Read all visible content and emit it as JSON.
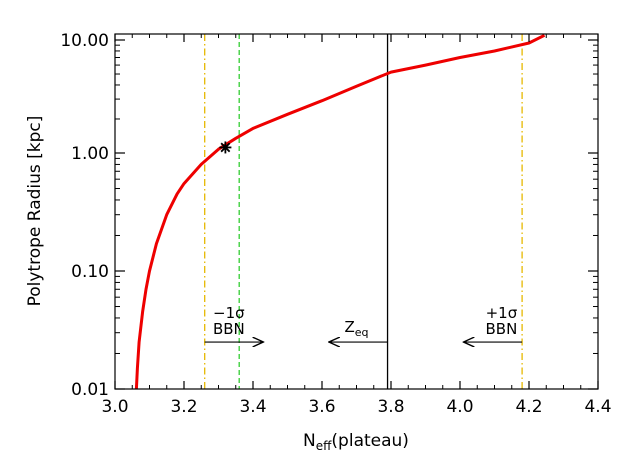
{
  "chart_data": {
    "type": "line",
    "xlabel": {
      "main": "N",
      "sub": "eff",
      "suffix": "(plateau)"
    },
    "ylabel": "Polytrope Radius [kpc]",
    "xlim": [
      3.0,
      4.4
    ],
    "ylim": [
      0.01,
      12
    ],
    "yscale": "log",
    "x_ticks": [
      3.0,
      3.2,
      3.4,
      3.6,
      3.8,
      4.0,
      4.2,
      4.4
    ],
    "x_tick_labels": [
      "3.0",
      "3.2",
      "3.4",
      "3.6",
      "3.8",
      "4.0",
      "4.2",
      "4.4"
    ],
    "y_ticks": [
      0.01,
      0.1,
      1.0,
      10.0
    ],
    "y_tick_labels": [
      "0.01",
      "0.10",
      "1.00",
      "10.00"
    ],
    "grid": false,
    "series": [
      {
        "color": "#ee0000",
        "x": [
          3.062,
          3.065,
          3.07,
          3.08,
          3.09,
          3.1,
          3.12,
          3.15,
          3.18,
          3.2,
          3.25,
          3.3,
          3.35,
          3.4,
          3.5,
          3.6,
          3.7,
          3.8,
          3.9,
          4.0,
          4.1,
          4.2,
          4.245
        ],
        "y": [
          0.01,
          0.015,
          0.025,
          0.045,
          0.07,
          0.1,
          0.17,
          0.3,
          0.45,
          0.55,
          0.8,
          1.08,
          1.35,
          1.65,
          2.2,
          2.9,
          3.9,
          5.2,
          6.0,
          7.0,
          8.0,
          9.4,
          11.0
        ]
      }
    ],
    "vlines": [
      {
        "x": 3.26,
        "color": "#e6b800",
        "style": "dashdot"
      },
      {
        "x": 3.36,
        "color": "#33cc33",
        "style": "dashed"
      },
      {
        "x": 3.79,
        "color": "#000000",
        "style": "solid"
      },
      {
        "x": 4.18,
        "color": "#e6b800",
        "style": "dashdot"
      }
    ],
    "marker": {
      "x": 3.32,
      "y": 1.12,
      "symbol": "asterisk",
      "color": "#000000"
    },
    "annotations": [
      {
        "line1": "−1σ",
        "line2": "BBN",
        "x_text": 3.33,
        "arrow_from": 3.26,
        "arrow_to": 3.43,
        "y": 0.025
      },
      {
        "line1": "Z",
        "line1_sub": "eq",
        "x_text": 3.7,
        "arrow_from": 3.79,
        "arrow_to": 3.62,
        "y": 0.025
      },
      {
        "line1": "+1σ",
        "line2": "BBN",
        "x_text": 4.12,
        "arrow_from": 4.18,
        "arrow_to": 4.01,
        "y": 0.025
      }
    ]
  }
}
